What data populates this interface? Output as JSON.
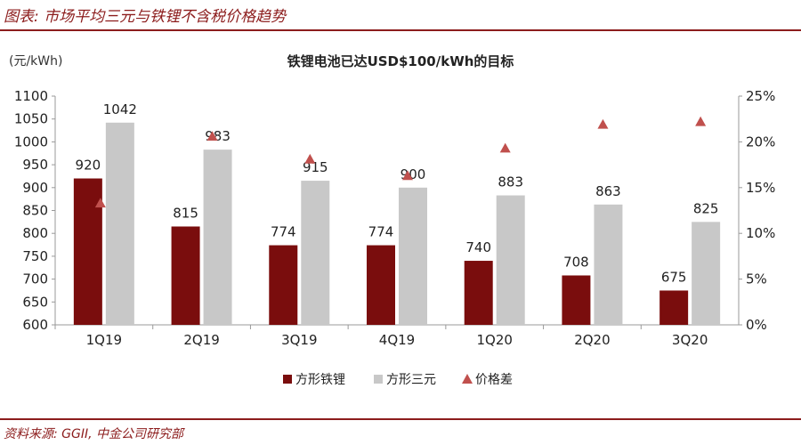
{
  "figure_title": "图表: 市场平均三元与铁锂不含税价格趋势",
  "source": "资料来源: GGII, 中金公司研究部",
  "colors": {
    "accent": "#8c1c1c",
    "lfp": "#7a0d0d",
    "ncm": "#c8c8c8",
    "diff": "#c0504d"
  },
  "chart_data": {
    "type": "bar",
    "title": "铁锂电池已达USD$100/kWh的目标",
    "ylabel": "(元/kWh)",
    "categories": [
      "1Q19",
      "2Q19",
      "3Q19",
      "4Q19",
      "1Q20",
      "2Q20",
      "3Q20"
    ],
    "ylim": [
      600,
      1100
    ],
    "y2lim": [
      0,
      25
    ],
    "yticks": [
      "600",
      "650",
      "700",
      "750",
      "800",
      "850",
      "900",
      "950",
      "1000",
      "1050",
      "1100"
    ],
    "y2ticks": [
      "0%",
      "5%",
      "10%",
      "15%",
      "20%",
      "25%"
    ],
    "series": [
      {
        "name": "方形铁锂",
        "kind": "bar",
        "values": [
          920,
          815,
          774,
          774,
          740,
          708,
          675
        ]
      },
      {
        "name": "方形三元",
        "kind": "bar",
        "values": [
          1042,
          983,
          915,
          900,
          883,
          863,
          825
        ]
      },
      {
        "name": "价格差",
        "kind": "marker",
        "axis": "right",
        "values": [
          13.3,
          20.6,
          18.1,
          16.3,
          19.3,
          21.9,
          22.2
        ]
      }
    ],
    "legend": "bottom"
  }
}
